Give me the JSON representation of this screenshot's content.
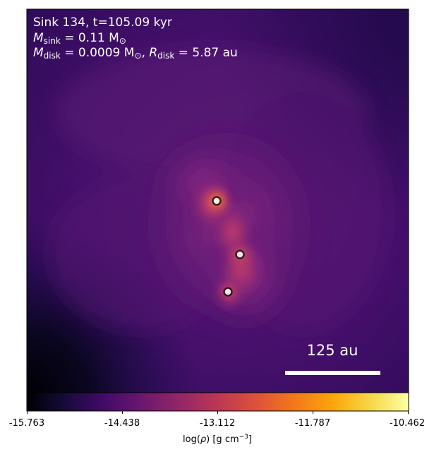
{
  "panel": {
    "title_line": "Sink 134, t=105.09 kyr",
    "msink": {
      "symbol": "M",
      "sub": "sink",
      "rest": " = 0.11 M",
      "sun_sub": "⊙"
    },
    "mdisk": {
      "symbol": "M",
      "sub": "disk",
      "rest": " = 0.0009 M",
      "sun_sub": "⊙",
      "sep": ", "
    },
    "rdisk": {
      "symbol": "R",
      "sub": "disk",
      "rest": " = 5.87 au"
    },
    "scale_bar_label": "125 au",
    "colormap": "inferno",
    "sinks": [
      {
        "id": "sink-a",
        "role": "primary"
      },
      {
        "id": "sink-b",
        "role": "secondary"
      },
      {
        "id": "sink-c",
        "role": "secondary"
      }
    ]
  },
  "colorbar": {
    "ticks": [
      "-15.763",
      "-14.438",
      "-13.112",
      "-11.787",
      "-10.462"
    ],
    "label_text": "log(",
    "label_rho": "ρ",
    "label_units": ") [g cm",
    "label_exp": "−3",
    "label_close": "]"
  }
}
